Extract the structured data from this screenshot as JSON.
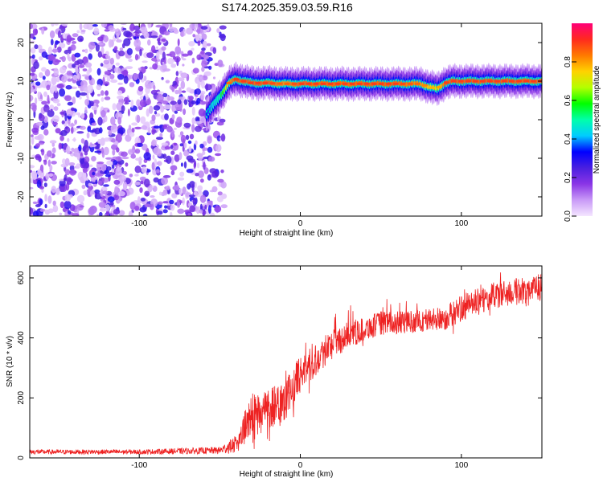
{
  "title": "S174.2025.359.03.59.R16",
  "chart_data": [
    {
      "type": "heatmap",
      "xlabel": "Height of straight line (km)",
      "ylabel": "Frequency (Hz)",
      "xlim": [
        -168,
        150
      ],
      "ylim": [
        -25,
        25
      ],
      "xticks": [
        -100,
        0,
        100
      ],
      "yticks": [
        -20,
        -10,
        0,
        10,
        20
      ],
      "colorbar": {
        "label": "Normalized spectral amplitude",
        "range": [
          0,
          1
        ],
        "ticks": [
          0.0,
          0.2,
          0.4,
          0.6,
          0.8
        ],
        "colors": [
          "#f4e6ff",
          "#c99af7",
          "#8a35e6",
          "#4a1fe0",
          "#0000ff",
          "#00ccff",
          "#00ffaa",
          "#00ff00",
          "#b4ff00",
          "#ffd200",
          "#ff7a00",
          "#ff2a1e",
          "#ff0078"
        ]
      },
      "noise_region_x": [
        -168,
        -50
      ],
      "ridge": {
        "x": [
          -58,
          -50,
          -44,
          -40,
          -30,
          -20,
          -10,
          0,
          20,
          40,
          60,
          75,
          80,
          85,
          90,
          95,
          110,
          130,
          150
        ],
        "y": [
          1.5,
          6,
          9.5,
          10.5,
          9.5,
          9.5,
          9.3,
          9.3,
          9.3,
          9.3,
          9.3,
          9.3,
          8.5,
          8,
          9.5,
          10,
          10,
          10,
          10
        ],
        "amplitude": [
          0.35,
          0.5,
          0.8,
          0.85,
          0.85,
          0.85,
          0.8,
          0.85,
          0.85,
          0.85,
          0.85,
          0.8,
          0.75,
          0.7,
          0.85,
          0.85,
          0.85,
          0.85,
          0.85
        ]
      }
    },
    {
      "type": "line",
      "xlabel": "Height of straight line (km)",
      "ylabel": "SNR (10 * v/v)",
      "xlim": [
        -168,
        150
      ],
      "ylim": [
        0,
        640
      ],
      "xticks": [
        -100,
        0,
        100
      ],
      "yticks": [
        0,
        200,
        400,
        600
      ],
      "color": "#ee2222",
      "trend": {
        "x": [
          -168,
          -100,
          -50,
          -40,
          -35,
          -30,
          -25,
          -20,
          -15,
          -10,
          -5,
          0,
          10,
          20,
          30,
          40,
          50,
          60,
          70,
          80,
          90,
          100,
          110,
          120,
          130,
          140,
          150
        ],
        "y": [
          20,
          20,
          25,
          45,
          90,
          150,
          150,
          165,
          185,
          195,
          230,
          280,
          330,
          380,
          410,
          430,
          450,
          450,
          455,
          460,
          465,
          500,
          520,
          540,
          550,
          560,
          570
        ]
      },
      "noise_amplitude": [
        8,
        8,
        12,
        30,
        55,
        70,
        75,
        75,
        75,
        70,
        65,
        60,
        55,
        50,
        45,
        40,
        40,
        38,
        38,
        40,
        40,
        45,
        45,
        45,
        45,
        45,
        45
      ]
    }
  ]
}
